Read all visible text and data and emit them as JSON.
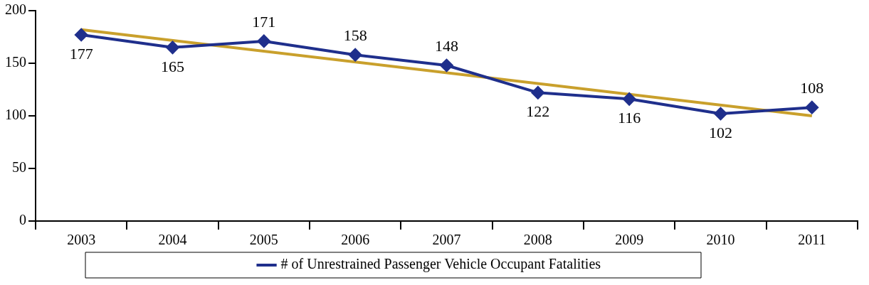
{
  "chart_data": {
    "type": "line",
    "categories": [
      "2003",
      "2004",
      "2005",
      "2006",
      "2007",
      "2008",
      "2009",
      "2010",
      "2011"
    ],
    "series": [
      {
        "name": "# of Unrestrained Passenger Vehicle Occupant Fatalities",
        "color": "#1f2f8c",
        "values": [
          177,
          165,
          171,
          158,
          148,
          122,
          116,
          102,
          108
        ],
        "value_labels": [
          "177",
          "165",
          "171",
          "158",
          "148",
          "122",
          "116",
          "102",
          "108"
        ],
        "marker": "diamond"
      },
      {
        "type": "line",
        "color": "#c9a02c",
        "values": [
          182,
          null,
          null,
          null,
          null,
          null,
          null,
          null,
          100
        ],
        "marker": "none"
      }
    ],
    "ylim": [
      0,
      200
    ],
    "yticks": [
      0,
      50,
      100,
      150,
      200
    ],
    "legend": "bottom",
    "grid": false
  }
}
